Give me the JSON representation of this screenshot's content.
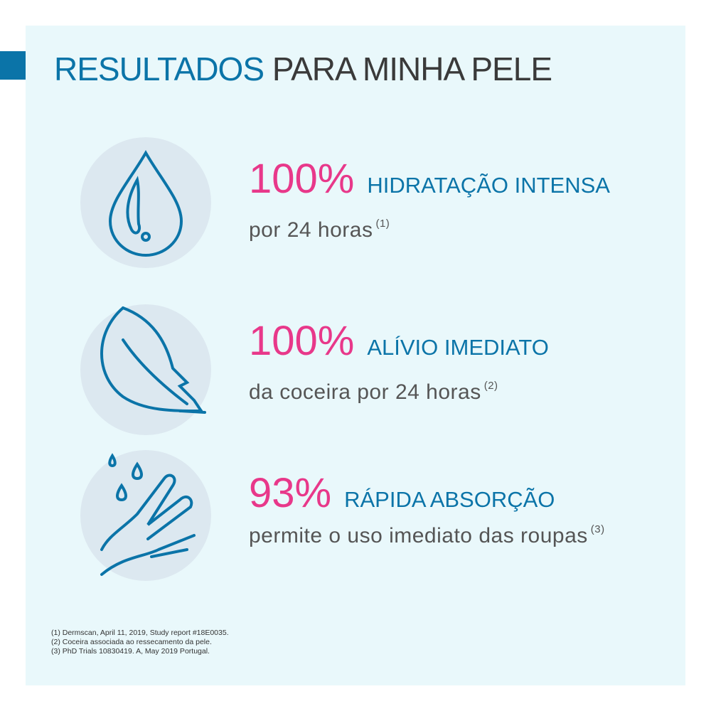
{
  "title": {
    "bold": "RESULTADOS",
    "light": "PARA MINHA PELE"
  },
  "colors": {
    "blue": "#0b74a8",
    "pink": "#e8388a",
    "panel": "#e9f8fb"
  },
  "results": [
    {
      "icon": "water-drop-icon",
      "percent": "100%",
      "heading": "HIDRATAÇÃO INTENSA",
      "detail": "por 24 horas",
      "ref": "(1)"
    },
    {
      "icon": "feather-icon",
      "percent": "100%",
      "heading": "ALÍVIO IMEDIATO",
      "detail": "da coceira por 24 horas",
      "ref": "(2)"
    },
    {
      "icon": "hand-drops-icon",
      "percent": "93%",
      "heading": "RÁPIDA ABSORÇÃO",
      "detail": "permite o uso imediato das roupas",
      "ref": "(3)"
    }
  ],
  "footnotes": [
    "(1) Dermscan, April 11, 2019, Study report #18E0035.",
    "(2) Coceira associada ao ressecamento da pele.",
    "(3) PhD Trials 10830419. A, May 2019 Portugal."
  ]
}
